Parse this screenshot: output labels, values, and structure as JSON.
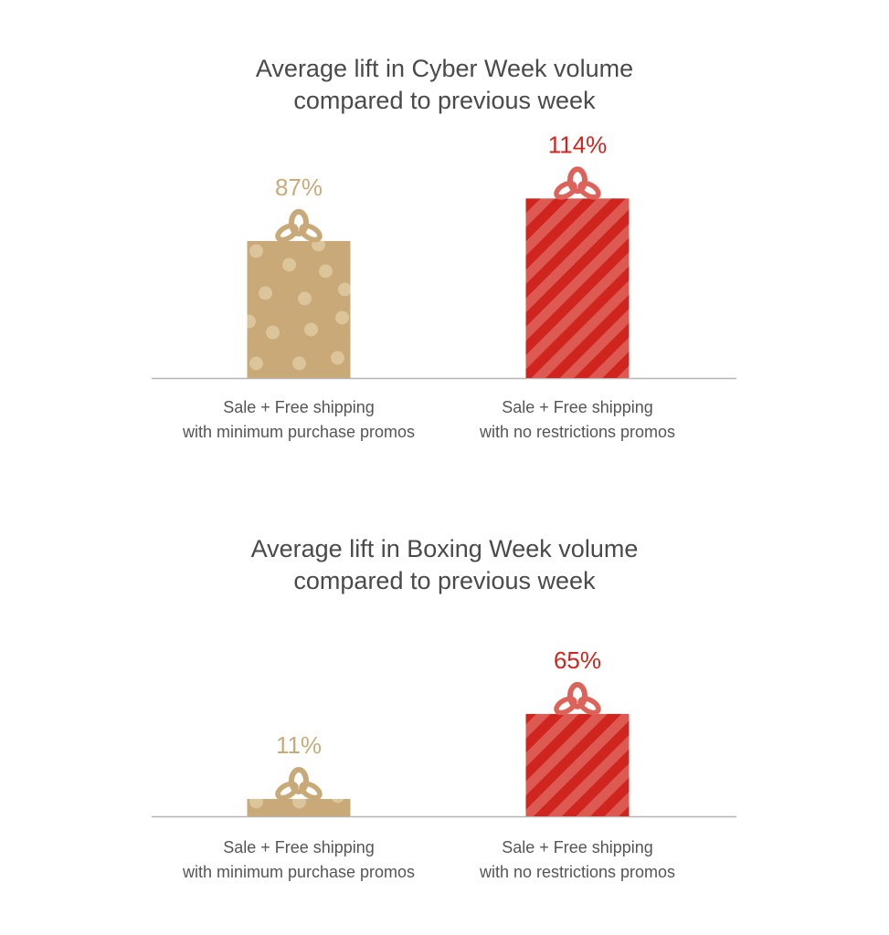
{
  "colors": {
    "gold": "#c8a977",
    "gold_dot": "#dcc49b",
    "gold_text": "#c9ab7a",
    "red": "#d0251f",
    "red_stripe": "#dc5a52",
    "red_bow": "#dd635a",
    "red_text": "#d0251f",
    "axis": "#b5b5b5",
    "text": "#555555"
  },
  "chart_data": [
    {
      "type": "bar",
      "title": [
        "Average lift in Cyber Week volume",
        "compared to previous week"
      ],
      "categories": [
        [
          "Sale + Free shipping",
          "with minimum purchase promos"
        ],
        [
          "Sale + Free shipping",
          "with no restrictions promos"
        ]
      ],
      "values": [
        87,
        114
      ],
      "data_labels": [
        "87%",
        "114%"
      ],
      "styles": [
        "gold-dots",
        "red-stripes"
      ],
      "unit": "%",
      "ylim": [
        0,
        120
      ],
      "grid": false
    },
    {
      "type": "bar",
      "title": [
        "Average lift in Boxing Week volume",
        "compared to previous week"
      ],
      "categories": [
        [
          "Sale + Free shipping",
          "with minimum purchase promos"
        ],
        [
          "Sale + Free shipping",
          "with no restrictions promos"
        ]
      ],
      "values": [
        11,
        65
      ],
      "data_labels": [
        "11%",
        "65%"
      ],
      "styles": [
        "gold-dots",
        "red-stripes"
      ],
      "unit": "%",
      "ylim": [
        0,
        120
      ],
      "grid": false
    }
  ]
}
